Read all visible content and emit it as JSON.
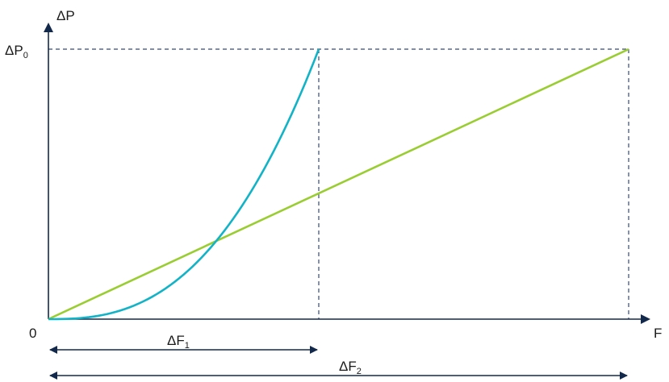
{
  "diagram": {
    "y_axis_label": "ΔP",
    "x_axis_label": "F",
    "origin_label": "0",
    "level_label": {
      "main": "ΔP",
      "sub": "0"
    },
    "span_1_label": {
      "main": "ΔF",
      "sub": "1"
    },
    "span_2_label": {
      "main": "ΔF",
      "sub": "2"
    },
    "colors": {
      "axis": "#13294b",
      "curve": "#12b3c6",
      "line": "#9acd32",
      "dashed": "#3a4a6b",
      "arrow": "#13294b"
    }
  }
}
